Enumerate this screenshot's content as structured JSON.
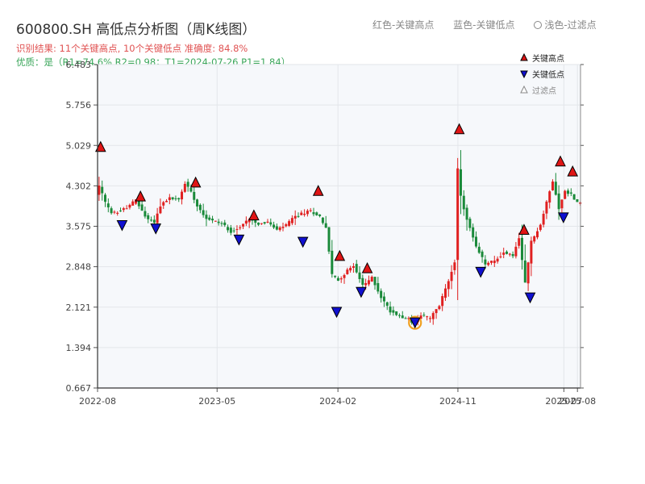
{
  "header": {
    "title": "600800.SH 高低点分析图（周K线图）",
    "result_line": "识别结果: 11个关键高点, 10个关键低点  准确度: 84.8%",
    "quality_line": "优质：是（R1=74.6%  R2=0.98；T1=2024-07-26 P1=1.84）",
    "legend_red": "红色-关键高点",
    "legend_blue": "蓝色-关键低点",
    "legend_light": "浅色-过滤点"
  },
  "colors": {
    "up": "#e02020",
    "down": "#1a8a3a",
    "high_marker": "#e01515",
    "low_marker": "#1010d0",
    "highlight_ring": "#f0a020",
    "plot_bg": "#f6f8fb",
    "grid": "#e3e6ea"
  },
  "chart_data": {
    "type": "candlestick",
    "title": "600800.SH 高低点分析图（周K线图）",
    "y_ticks": [
      "0.667",
      "1.394",
      "2.121",
      "2.848",
      "3.575",
      "4.302",
      "5.029",
      "5.756",
      "6.483"
    ],
    "ylim": [
      0.667,
      6.483
    ],
    "x_ticks": [
      {
        "label": "2022-08",
        "date": "2022-08-01"
      },
      {
        "label": "2023-05",
        "date": "2023-05-01"
      },
      {
        "label": "2024-02",
        "date": "2024-02-01"
      },
      {
        "label": "2024-11",
        "date": "2024-11-01"
      },
      {
        "label": "2025-07",
        "date": "2025-07-01"
      },
      {
        "label": "2025-08",
        "date": "2025-08-01"
      }
    ],
    "xlim": [
      "2022-08-01",
      "2025-08-08"
    ],
    "grid": true,
    "legend": {
      "placement": "top-right",
      "entries": [
        {
          "label": "关键高点",
          "kind": "high"
        },
        {
          "label": "关键低点",
          "kind": "low"
        },
        {
          "label": "过滤点",
          "kind": "filtered"
        }
      ]
    },
    "trend": [
      [
        "2022-08-01",
        4.15
      ],
      [
        "2022-08-08",
        4.3
      ],
      [
        "2022-08-22",
        4.0
      ],
      [
        "2022-09-05",
        3.8
      ],
      [
        "2022-09-26",
        3.85
      ],
      [
        "2022-10-17",
        3.95
      ],
      [
        "2022-10-31",
        4.05
      ],
      [
        "2022-11-21",
        3.75
      ],
      [
        "2022-12-12",
        3.65
      ],
      [
        "2022-12-26",
        3.95
      ],
      [
        "2023-01-16",
        4.08
      ],
      [
        "2023-02-06",
        4.05
      ],
      [
        "2023-02-20",
        4.35
      ],
      [
        "2023-03-06",
        4.2
      ],
      [
        "2023-03-20",
        3.95
      ],
      [
        "2023-04-10",
        3.72
      ],
      [
        "2023-05-15",
        3.62
      ],
      [
        "2023-06-05",
        3.48
      ],
      [
        "2023-06-26",
        3.55
      ],
      [
        "2023-07-17",
        3.72
      ],
      [
        "2023-08-07",
        3.62
      ],
      [
        "2023-08-28",
        3.65
      ],
      [
        "2023-09-18",
        3.5
      ],
      [
        "2023-10-09",
        3.6
      ],
      [
        "2023-10-30",
        3.75
      ],
      [
        "2023-11-13",
        3.8
      ],
      [
        "2023-12-04",
        3.85
      ],
      [
        "2023-12-25",
        3.75
      ],
      [
        "2024-01-08",
        3.55
      ],
      [
        "2024-01-22",
        2.7
      ],
      [
        "2024-02-05",
        2.6
      ],
      [
        "2024-02-19",
        2.72
      ],
      [
        "2024-03-11",
        2.88
      ],
      [
        "2024-04-01",
        2.5
      ],
      [
        "2024-04-22",
        2.65
      ],
      [
        "2024-05-13",
        2.3
      ],
      [
        "2024-06-03",
        2.05
      ],
      [
        "2024-06-24",
        1.97
      ],
      [
        "2024-07-15",
        1.9
      ],
      [
        "2024-07-26",
        1.84
      ],
      [
        "2024-08-12",
        1.98
      ],
      [
        "2024-09-02",
        1.92
      ],
      [
        "2024-09-23",
        2.15
      ],
      [
        "2024-10-14",
        2.6
      ],
      [
        "2024-10-28",
        2.95
      ],
      [
        "2024-11-04",
        4.6
      ],
      [
        "2024-11-11",
        4.1
      ],
      [
        "2024-11-25",
        3.7
      ],
      [
        "2024-12-16",
        3.2
      ],
      [
        "2025-01-06",
        2.9
      ],
      [
        "2025-01-27",
        2.95
      ],
      [
        "2025-02-17",
        3.1
      ],
      [
        "2025-03-10",
        3.05
      ],
      [
        "2025-03-24",
        3.35
      ],
      [
        "2025-04-07",
        2.55
      ],
      [
        "2025-04-21",
        3.3
      ],
      [
        "2025-05-12",
        3.6
      ],
      [
        "2025-05-26",
        4.0
      ],
      [
        "2025-06-09",
        4.4
      ],
      [
        "2025-06-23",
        3.9
      ],
      [
        "2025-07-07",
        4.2
      ],
      [
        "2025-07-21",
        4.15
      ],
      [
        "2025-08-04",
        4.0
      ]
    ],
    "key_highs": [
      {
        "date": "2022-08-08",
        "value": 4.92
      },
      {
        "date": "2022-11-07",
        "value": 4.03
      },
      {
        "date": "2023-03-13",
        "value": 4.28
      },
      {
        "date": "2023-07-24",
        "value": 3.69
      },
      {
        "date": "2023-12-18",
        "value": 4.13
      },
      {
        "date": "2024-02-05",
        "value": 2.96
      },
      {
        "date": "2024-04-08",
        "value": 2.74
      },
      {
        "date": "2024-11-04",
        "value": 5.24
      },
      {
        "date": "2025-04-01",
        "value": 3.43
      },
      {
        "date": "2025-06-23",
        "value": 4.66
      },
      {
        "date": "2025-07-21",
        "value": 4.48
      }
    ],
    "key_lows": [
      {
        "date": "2022-09-26",
        "value": 3.59
      },
      {
        "date": "2022-12-12",
        "value": 3.53
      },
      {
        "date": "2023-06-20",
        "value": 3.33
      },
      {
        "date": "2023-11-13",
        "value": 3.29
      },
      {
        "date": "2024-01-29",
        "value": 2.03
      },
      {
        "date": "2024-03-25",
        "value": 2.39
      },
      {
        "date": "2024-07-26",
        "value": 1.84,
        "highlight": true
      },
      {
        "date": "2024-12-23",
        "value": 2.75
      },
      {
        "date": "2025-04-15",
        "value": 2.29
      },
      {
        "date": "2025-06-30",
        "value": 3.73
      }
    ]
  }
}
